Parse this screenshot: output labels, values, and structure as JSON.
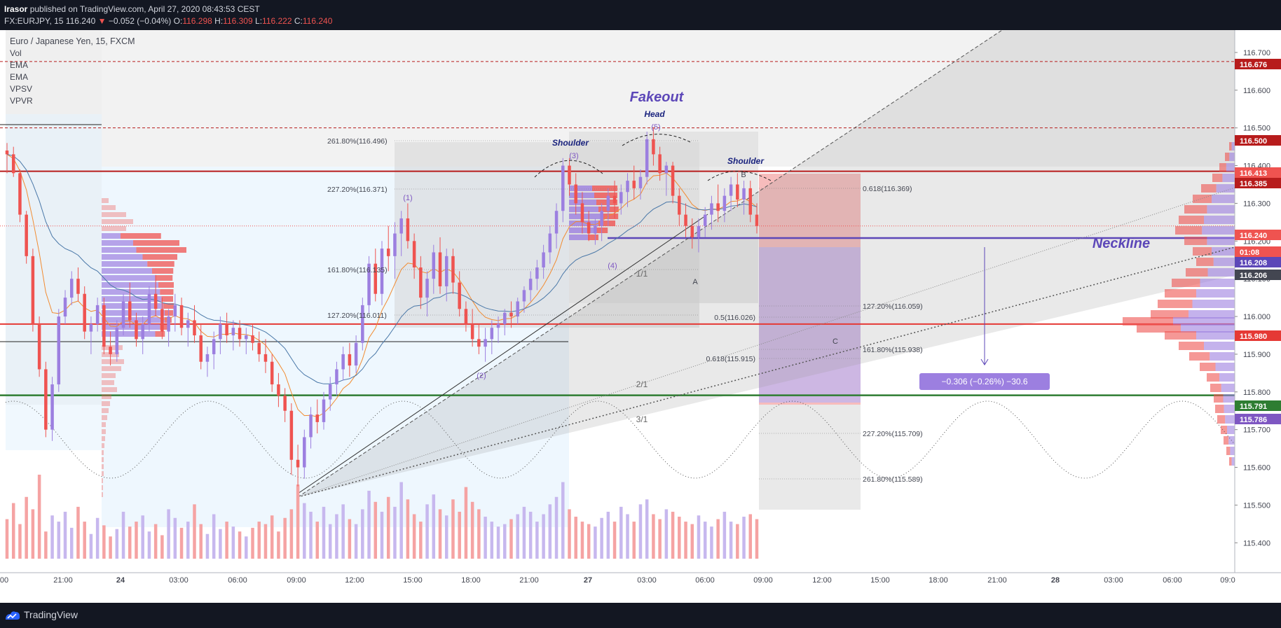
{
  "header": {
    "author": "Irasor",
    "published_text": "published on TradingView.com, April 27, 2020 08:43:53 CEST",
    "symbol": "FX:EURJPY, 15",
    "last": "116.240",
    "change": "−0.052 (−0.04%)",
    "o_label": "O:",
    "o_value": "116.298",
    "h_label": "H:",
    "h_value": "116.309",
    "l_label": "L:",
    "l_value": "116.222",
    "c_label": "C:",
    "c_value": "116.240"
  },
  "legend": {
    "title": "Euro / Japanese Yen, 15, FXCM",
    "indicators": [
      "Vol",
      "EMA",
      "EMA",
      "VPSV",
      "VPVR"
    ]
  },
  "footer": {
    "brand": "TradingView"
  },
  "colors": {
    "bull": "#9c7fe0",
    "bear": "#ef5350",
    "vol_bull": "#c7b8ee",
    "vol_bear": "#f5a3a3",
    "ema_fast": "#f28b30",
    "ema_slow": "#4a78a8",
    "neckline": "#5c47b8",
    "resistance": "#b71c1c",
    "support_red": "#e53935",
    "support_green": "#2e7d32"
  },
  "chart_data": {
    "type": "candlestick",
    "title": "Euro / Japanese Yen, 15, FXCM",
    "ylim": [
      115.33,
      116.75
    ],
    "y_ticks": [
      "116.700",
      "116.600",
      "116.500",
      "116.400",
      "116.300",
      "116.200",
      "116.100",
      "116.000",
      "115.900",
      "115.800",
      "115.700",
      "115.600",
      "115.500",
      "115.400"
    ],
    "x_ticks": [
      "00",
      "21:00",
      "24",
      "03:00",
      "06:00",
      "09:00",
      "12:00",
      "15:00",
      "18:00",
      "21:00",
      "27",
      "03:00",
      "06:00",
      "09:00",
      "12:00",
      "15:00",
      "18:00",
      "21:00",
      "28",
      "03:00",
      "06:00",
      "09:0"
    ],
    "price_labels": [
      {
        "value": "116.676",
        "bg": "#b71c1c"
      },
      {
        "value": "116.500",
        "bg": "#b71c1c"
      },
      {
        "value": "116.413",
        "bg": "#ef5350"
      },
      {
        "value": "116.385",
        "bg": "#b71c1c"
      },
      {
        "value": "116.240",
        "bg": "#ef5350"
      },
      {
        "value": "01:08",
        "bg": "#ef5350"
      },
      {
        "value": "116.208",
        "bg": "#5c47b8"
      },
      {
        "value": "116.206",
        "bg": "#434651"
      },
      {
        "value": "115.980",
        "bg": "#e53935"
      },
      {
        "value": "115.791",
        "bg": "#2e7d32"
      },
      {
        "value": "115.786",
        "bg": "#7e57c2"
      }
    ],
    "levels": [
      {
        "name": "top-dashed",
        "value": 116.676
      },
      {
        "name": "upper-dashed",
        "value": 116.5
      },
      {
        "name": "resistance",
        "value": 116.385
      },
      {
        "name": "last-price",
        "value": 116.24
      },
      {
        "name": "neckline",
        "value": 116.208
      },
      {
        "name": "support-red",
        "value": 115.98
      },
      {
        "name": "support-green",
        "value": 115.791
      }
    ],
    "annotations": {
      "fakeout": "Fakeout",
      "head": "Head",
      "shoulder_left": "Shoulder",
      "shoulder_right": "Shoulder",
      "neckline": "Neckline",
      "wave_1": "(1)",
      "wave_2": "(2)",
      "wave_3": "(3)",
      "wave_4": "(4)",
      "wave_5": "(5)",
      "a": "A",
      "b": "B",
      "c": "C",
      "fan_1": "1/1",
      "fan_2": "2/1",
      "fan_3": "3/1",
      "measure": "−0.306 (−0.26%) −30.6"
    },
    "fib_left": [
      "261.80%(116.496)",
      "227.20%(116.371)",
      "161.80%(116.135)",
      "127.20%(116.011)"
    ],
    "fib_right": [
      "0.618(116.369)",
      "127.20%(116.059)",
      "0.5(116.026)",
      "161.80%(115.938)",
      "0.618(115.915)",
      "227.20%(115.709)",
      "261.80%(115.589)"
    ],
    "candles": [
      [
        116.44,
        116.46,
        116.38,
        116.43
      ],
      [
        116.43,
        116.45,
        116.37,
        116.38
      ],
      [
        116.38,
        116.39,
        116.25,
        116.27
      ],
      [
        116.27,
        116.28,
        116.14,
        116.16
      ],
      [
        116.16,
        116.18,
        115.96,
        115.98
      ],
      [
        115.98,
        116.0,
        115.84,
        115.86
      ],
      [
        115.86,
        115.88,
        115.68,
        115.7
      ],
      [
        115.7,
        115.84,
        115.67,
        115.82
      ],
      [
        115.82,
        116.02,
        115.8,
        116.0
      ],
      [
        116.0,
        116.07,
        115.98,
        116.05
      ],
      [
        116.05,
        116.12,
        116.03,
        116.1
      ],
      [
        116.1,
        116.13,
        116.04,
        116.06
      ],
      [
        116.06,
        116.08,
        115.94,
        115.96
      ],
      [
        115.96,
        116.0,
        115.9,
        115.98
      ],
      [
        115.98,
        116.05,
        115.96,
        116.03
      ],
      [
        116.03,
        116.05,
        115.9,
        115.92
      ],
      [
        115.92,
        115.96,
        115.87,
        115.9
      ],
      [
        115.9,
        115.99,
        115.88,
        115.97
      ],
      [
        115.97,
        116.06,
        115.95,
        116.04
      ],
      [
        116.04,
        116.09,
        115.97,
        115.99
      ],
      [
        115.99,
        116.01,
        115.92,
        115.94
      ],
      [
        115.94,
        116.0,
        115.9,
        115.98
      ],
      [
        115.98,
        116.08,
        115.96,
        116.06
      ],
      [
        116.06,
        116.11,
        116.0,
        116.02
      ],
      [
        116.02,
        116.05,
        115.94,
        115.96
      ],
      [
        115.96,
        116.02,
        115.92,
        116.0
      ],
      [
        116.0,
        116.06,
        115.96,
        116.03
      ],
      [
        116.03,
        116.05,
        115.95,
        115.97
      ],
      [
        115.97,
        116.01,
        115.92,
        115.99
      ],
      [
        115.99,
        116.03,
        115.93,
        115.95
      ],
      [
        115.95,
        115.98,
        115.86,
        115.88
      ],
      [
        115.88,
        115.92,
        115.84,
        115.9
      ],
      [
        115.9,
        115.96,
        115.86,
        115.94
      ],
      [
        115.94,
        116.0,
        115.9,
        115.98
      ],
      [
        115.98,
        116.01,
        115.93,
        115.95
      ],
      [
        115.95,
        115.99,
        115.91,
        115.97
      ],
      [
        115.97,
        115.99,
        115.92,
        115.94
      ],
      [
        115.94,
        115.97,
        115.9,
        115.95
      ],
      [
        115.95,
        115.98,
        115.91,
        115.93
      ],
      [
        115.93,
        115.96,
        115.88,
        115.9
      ],
      [
        115.9,
        115.94,
        115.85,
        115.88
      ],
      [
        115.88,
        115.9,
        115.8,
        115.82
      ],
      [
        115.82,
        115.85,
        115.76,
        115.79
      ],
      [
        115.79,
        115.81,
        115.72,
        115.75
      ],
      [
        115.75,
        115.77,
        115.58,
        115.62
      ],
      [
        115.62,
        115.66,
        115.55,
        115.6
      ],
      [
        115.6,
        115.7,
        115.57,
        115.68
      ],
      [
        115.68,
        115.76,
        115.65,
        115.74
      ],
      [
        115.74,
        115.78,
        115.69,
        115.72
      ],
      [
        115.72,
        115.8,
        115.7,
        115.78
      ],
      [
        115.78,
        115.84,
        115.75,
        115.82
      ],
      [
        115.82,
        115.88,
        115.79,
        115.86
      ],
      [
        115.86,
        115.92,
        115.83,
        115.9
      ],
      [
        115.9,
        115.93,
        115.84,
        115.87
      ],
      [
        115.87,
        115.95,
        115.85,
        115.93
      ],
      [
        115.93,
        116.05,
        115.91,
        116.03
      ],
      [
        116.03,
        116.16,
        116.01,
        116.14
      ],
      [
        116.14,
        116.18,
        116.04,
        116.06
      ],
      [
        116.06,
        116.2,
        116.03,
        116.18
      ],
      [
        116.18,
        116.24,
        116.12,
        116.16
      ],
      [
        116.16,
        116.25,
        116.1,
        116.22
      ],
      [
        116.22,
        116.28,
        116.16,
        116.26
      ],
      [
        116.26,
        116.3,
        116.18,
        116.2
      ],
      [
        116.2,
        116.22,
        116.1,
        116.13
      ],
      [
        116.13,
        116.16,
        116.02,
        116.05
      ],
      [
        116.05,
        116.12,
        116.0,
        116.1
      ],
      [
        116.1,
        116.19,
        116.06,
        116.17
      ],
      [
        116.17,
        116.21,
        116.06,
        116.08
      ],
      [
        116.08,
        116.18,
        116.04,
        116.16
      ],
      [
        116.16,
        116.18,
        116.06,
        116.09
      ],
      [
        116.09,
        116.12,
        116.0,
        116.02
      ],
      [
        116.02,
        116.04,
        115.96,
        115.98
      ],
      [
        115.98,
        116.02,
        115.92,
        115.94
      ],
      [
        115.94,
        115.98,
        115.9,
        115.92
      ],
      [
        115.92,
        115.97,
        115.88,
        115.94
      ],
      [
        115.94,
        115.99,
        115.9,
        115.97
      ],
      [
        115.97,
        116.0,
        115.93,
        115.98
      ],
      [
        115.98,
        116.02,
        115.95,
        116.01
      ],
      [
        116.01,
        116.04,
        115.97,
        116.0
      ],
      [
        116.0,
        116.05,
        115.98,
        116.04
      ],
      [
        116.04,
        116.08,
        116.01,
        116.07
      ],
      [
        116.07,
        116.12,
        116.04,
        116.1
      ],
      [
        116.1,
        116.15,
        116.07,
        116.13
      ],
      [
        116.13,
        116.19,
        116.1,
        116.17
      ],
      [
        116.17,
        116.24,
        116.14,
        116.22
      ],
      [
        116.22,
        116.3,
        116.18,
        116.28
      ],
      [
        116.28,
        116.42,
        116.25,
        116.4
      ],
      [
        116.4,
        116.42,
        116.32,
        116.35
      ],
      [
        116.35,
        116.38,
        116.27,
        116.3
      ],
      [
        116.3,
        116.33,
        116.22,
        116.25
      ],
      [
        116.25,
        116.28,
        116.2,
        116.22
      ],
      [
        116.22,
        116.26,
        116.19,
        116.24
      ],
      [
        116.24,
        116.3,
        116.2,
        116.28
      ],
      [
        116.28,
        116.34,
        116.24,
        116.32
      ],
      [
        116.32,
        116.36,
        116.26,
        116.3
      ],
      [
        116.3,
        116.35,
        116.27,
        116.33
      ],
      [
        116.33,
        116.38,
        116.29,
        116.36
      ],
      [
        116.36,
        116.4,
        116.31,
        116.34
      ],
      [
        116.34,
        116.39,
        116.31,
        116.37
      ],
      [
        116.37,
        116.49,
        116.35,
        116.47
      ],
      [
        116.47,
        116.5,
        116.4,
        116.43
      ],
      [
        116.43,
        116.45,
        116.36,
        116.38
      ],
      [
        116.38,
        116.41,
        116.32,
        116.4
      ],
      [
        116.4,
        116.41,
        116.3,
        116.32
      ],
      [
        116.32,
        116.34,
        116.24,
        116.27
      ],
      [
        116.27,
        116.3,
        116.21,
        116.24
      ],
      [
        116.24,
        116.26,
        116.18,
        116.21
      ],
      [
        116.21,
        116.26,
        116.17,
        116.24
      ],
      [
        116.24,
        116.29,
        116.21,
        116.27
      ],
      [
        116.27,
        116.32,
        116.23,
        116.3
      ],
      [
        116.3,
        116.35,
        116.25,
        116.28
      ],
      [
        116.28,
        116.34,
        116.25,
        116.32
      ],
      [
        116.32,
        116.37,
        116.28,
        116.35
      ],
      [
        116.35,
        116.38,
        116.29,
        116.31
      ],
      [
        116.31,
        116.36,
        116.27,
        116.34
      ],
      [
        116.34,
        116.36,
        116.25,
        116.27
      ],
      [
        116.27,
        116.3,
        116.22,
        116.24
      ]
    ],
    "volumes": [
      32,
      45,
      28,
      50,
      40,
      68,
      22,
      35,
      30,
      38,
      25,
      42,
      30,
      20,
      33,
      27,
      18,
      24,
      38,
      26,
      30,
      35,
      22,
      28,
      19,
      40,
      33,
      25,
      30,
      44,
      28,
      20,
      36,
      24,
      30,
      26,
      22,
      18,
      25,
      30,
      28,
      35,
      22,
      33,
      40,
      60,
      45,
      38,
      30,
      42,
      28,
      36,
      44,
      32,
      28,
      40,
      55,
      46,
      38,
      50,
      42,
      62,
      48,
      36,
      30,
      44,
      52,
      40,
      35,
      48,
      38,
      58,
      46,
      40,
      34,
      30,
      26,
      28,
      32,
      36,
      42,
      38,
      30,
      36,
      44,
      50,
      62,
      40,
      34,
      30,
      28,
      26,
      33,
      38,
      30,
      42,
      36,
      30,
      44,
      48,
      36,
      32,
      40,
      38,
      34,
      30,
      28,
      35,
      30,
      26,
      32,
      38,
      30,
      28,
      34,
      36,
      32
    ]
  }
}
